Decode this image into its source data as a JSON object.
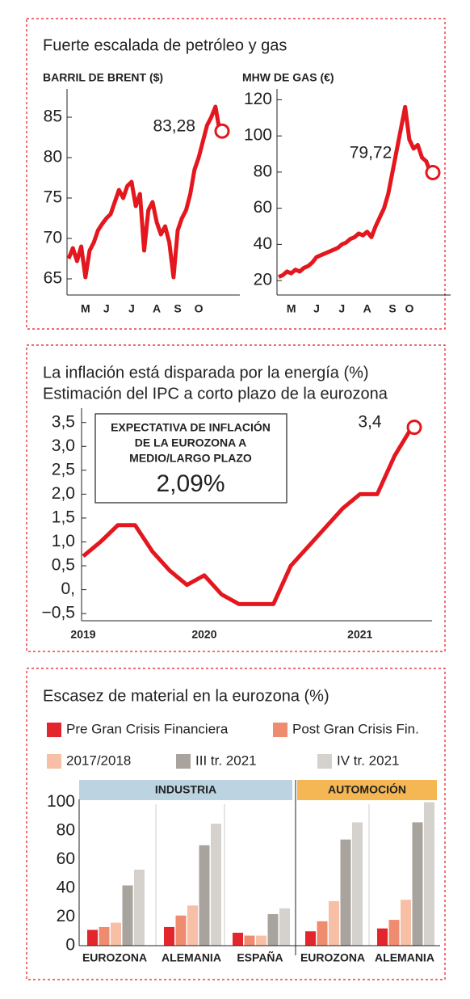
{
  "chart_data": [
    {
      "type": "line",
      "title": "Fuerte escalada de petróleo y gas",
      "y_label": "BARRIL DE BRENT ($)",
      "categories": [
        null,
        null,
        null,
        null,
        "M",
        null,
        null,
        null,
        null,
        "J",
        null,
        null,
        null,
        null,
        null,
        "J",
        null,
        null,
        null,
        null,
        null,
        "A",
        null,
        null,
        null,
        null,
        "S",
        null,
        null,
        null,
        null,
        "O",
        null,
        null,
        null,
        null,
        null
      ],
      "values": [
        67.5,
        68.8,
        67.2,
        69,
        65.2,
        68.5,
        69.5,
        71,
        71.8,
        72.5,
        73,
        74.5,
        76,
        75,
        76.5,
        77,
        74,
        75.5,
        68.5,
        73.5,
        74.5,
        72,
        70.5,
        71.5,
        69.5,
        65.2,
        71,
        72.5,
        73.5,
        75.5,
        78.5,
        80,
        82,
        84,
        85,
        86.3,
        83.28
      ],
      "color": "#e3171d",
      "annotation": "83,28",
      "ylim": [
        63,
        88.5
      ],
      "yticks": [
        65,
        70,
        75,
        80,
        85
      ]
    },
    {
      "type": "line",
      "y_label": "MHW DE GAS (€)",
      "categories": [
        null,
        null,
        null,
        "M",
        null,
        null,
        null,
        null,
        null,
        "J",
        null,
        null,
        null,
        null,
        null,
        "J",
        null,
        null,
        null,
        null,
        null,
        "A",
        null,
        null,
        null,
        null,
        null,
        "S",
        null,
        null,
        null,
        "O",
        null,
        null,
        null,
        null,
        null
      ],
      "values": [
        22,
        23,
        25,
        24,
        26,
        25,
        27,
        28,
        30,
        33,
        34,
        35,
        36,
        37,
        38,
        40,
        41,
        43,
        44,
        46,
        45,
        47,
        44,
        50,
        55,
        60,
        68,
        80,
        92,
        104,
        116,
        98,
        93,
        95,
        88,
        86,
        79.72
      ],
      "color": "#e3171d",
      "annotation": "79,72",
      "ylim": [
        12,
        126
      ],
      "yticks": [
        20,
        40,
        60,
        80,
        100,
        120
      ]
    },
    {
      "type": "line",
      "title": "La inflación está disparada por la energía (%)",
      "subtitle": "Estimación del IPC a corto plazo de la eurozona",
      "categories": [
        "2019",
        null,
        null,
        null,
        null,
        null,
        null,
        "2020",
        null,
        null,
        null,
        null,
        null,
        null,
        null,
        null,
        "2021",
        null,
        null,
        null
      ],
      "values": [
        0.7,
        1.0,
        1.35,
        1.35,
        0.8,
        0.4,
        0.1,
        0.3,
        -0.1,
        -0.3,
        -0.3,
        -0.3,
        0.5,
        0.9,
        1.3,
        1.7,
        2.0,
        2.0,
        2.8,
        3.4
      ],
      "color": "#e3171d",
      "annotation": "3,4",
      "box_lines": [
        "EXPECTATIVA DE INFLACIÓN",
        "DE LA EUROZONA A",
        "MEDIO/LARGO PLAZO"
      ],
      "box_value": "2,09%",
      "ylim": [
        -0.65,
        3.8
      ],
      "yticks": [
        {
          "value": 3.5,
          "label": "3,5"
        },
        {
          "value": 3.0,
          "label": "3,0"
        },
        {
          "value": 2.5,
          "label": "2,5"
        },
        {
          "value": 2.0,
          "label": "2,0"
        },
        {
          "value": 1.5,
          "label": "1,5"
        },
        {
          "value": 1.0,
          "label": "1,0"
        },
        {
          "value": 0.5,
          "label": "0,5"
        },
        {
          "value": 0,
          "label": "0,"
        },
        {
          "value": -0.5,
          "label": "−0,5"
        }
      ]
    },
    {
      "type": "bar",
      "title": "Escasez de material en la eurozona (%)",
      "groups": [
        {
          "label": "INDUSTRIA",
          "color": "#bcd4e2",
          "categories": [
            "EUROZONA",
            "ALEMANIA",
            "ESPAÑA"
          ]
        },
        {
          "label": "AUTOMOCIÓN",
          "color": "#f5b753",
          "categories": [
            "EUROZONA",
            "ALEMANIA"
          ]
        }
      ],
      "series": [
        {
          "name": "Pre Gran Crisis Financiera",
          "color": "#e3262b",
          "values": [
            11,
            13,
            9,
            10,
            12
          ]
        },
        {
          "name": "Post Gran Crisis Fin.",
          "color": "#ef8b6f",
          "values": [
            13,
            21,
            7,
            17,
            18
          ]
        },
        {
          "name": "2017/2018",
          "color": "#f7bfa5",
          "values": [
            16,
            28,
            7,
            31,
            32
          ]
        },
        {
          "name": "III tr. 2021",
          "color": "#a8a39d",
          "values": [
            42,
            70,
            22,
            74,
            86
          ]
        },
        {
          "name": "IV tr. 2021",
          "color": "#d5d2ce",
          "values": [
            53,
            85,
            26,
            86,
            100
          ]
        }
      ],
      "ylim": [
        0,
        102
      ],
      "yticks": [
        0,
        20,
        40,
        60,
        80,
        100
      ]
    }
  ]
}
